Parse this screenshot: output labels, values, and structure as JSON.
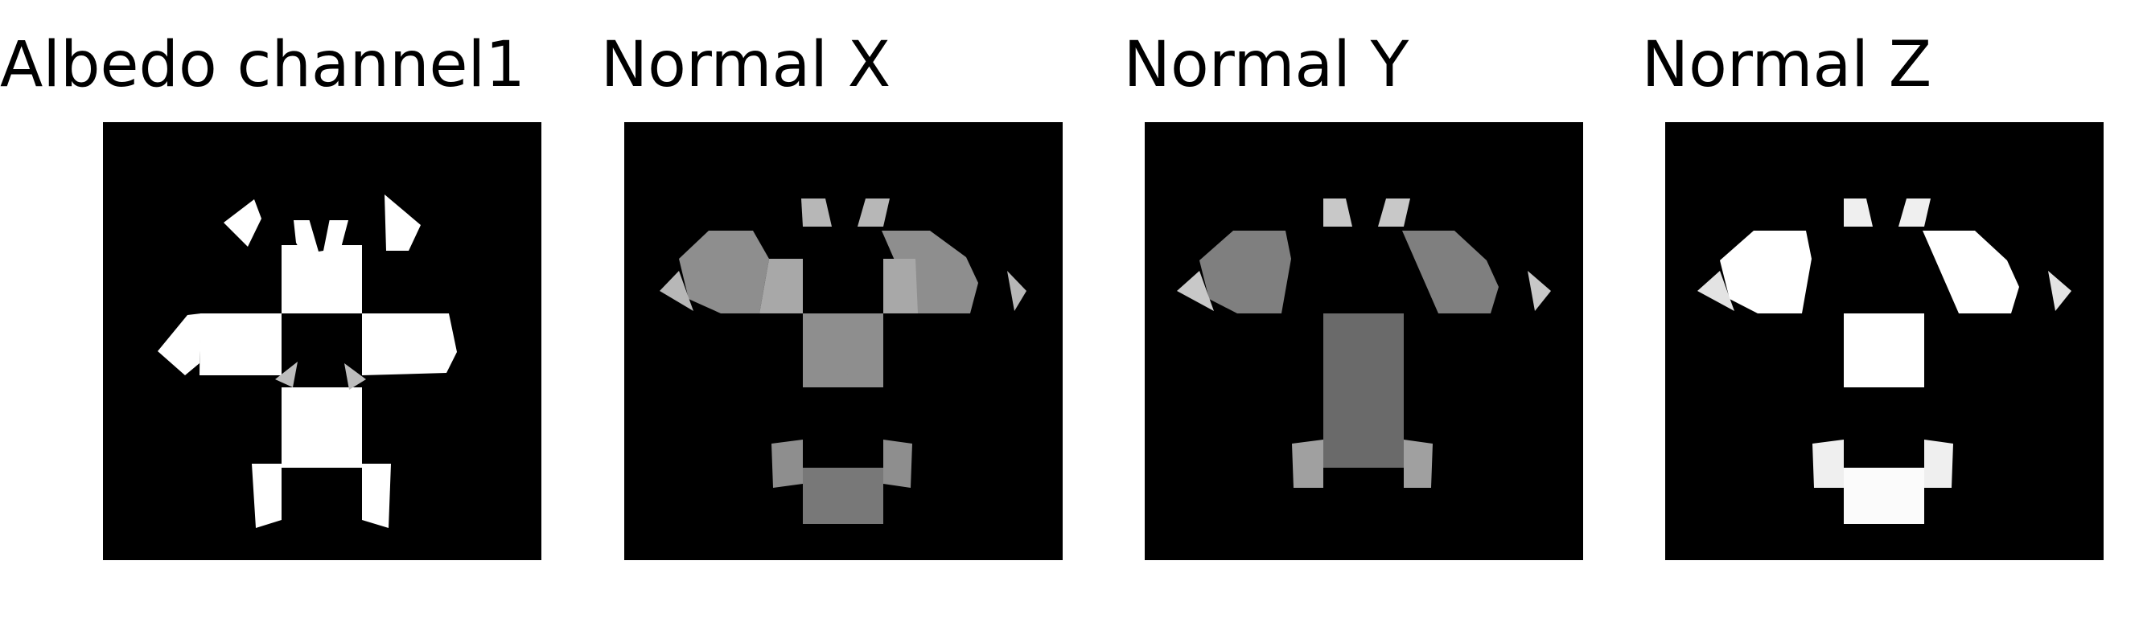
{
  "panels": [
    {
      "title": "Albedo channel1",
      "tones": [
        "#ffffff",
        "#f2f2f2",
        "#d8d8d8",
        "#bdbdbd"
      ],
      "center": "#000000"
    },
    {
      "title": "Normal X",
      "tones": [
        "#8e8e8e",
        "#a8a8a8",
        "#b7b7b7",
        "#787878"
      ],
      "center": "#000000"
    },
    {
      "title": "Normal Y",
      "tones": [
        "#7f7f7f",
        "#a0a0a0",
        "#c8c8c8",
        "#6a6a6a"
      ],
      "center": "#000000"
    },
    {
      "title": "Normal Z",
      "tones": [
        "#ffffff",
        "#fbfbfb",
        "#efefef",
        "#e3e3e3"
      ],
      "center": "#000000"
    }
  ]
}
